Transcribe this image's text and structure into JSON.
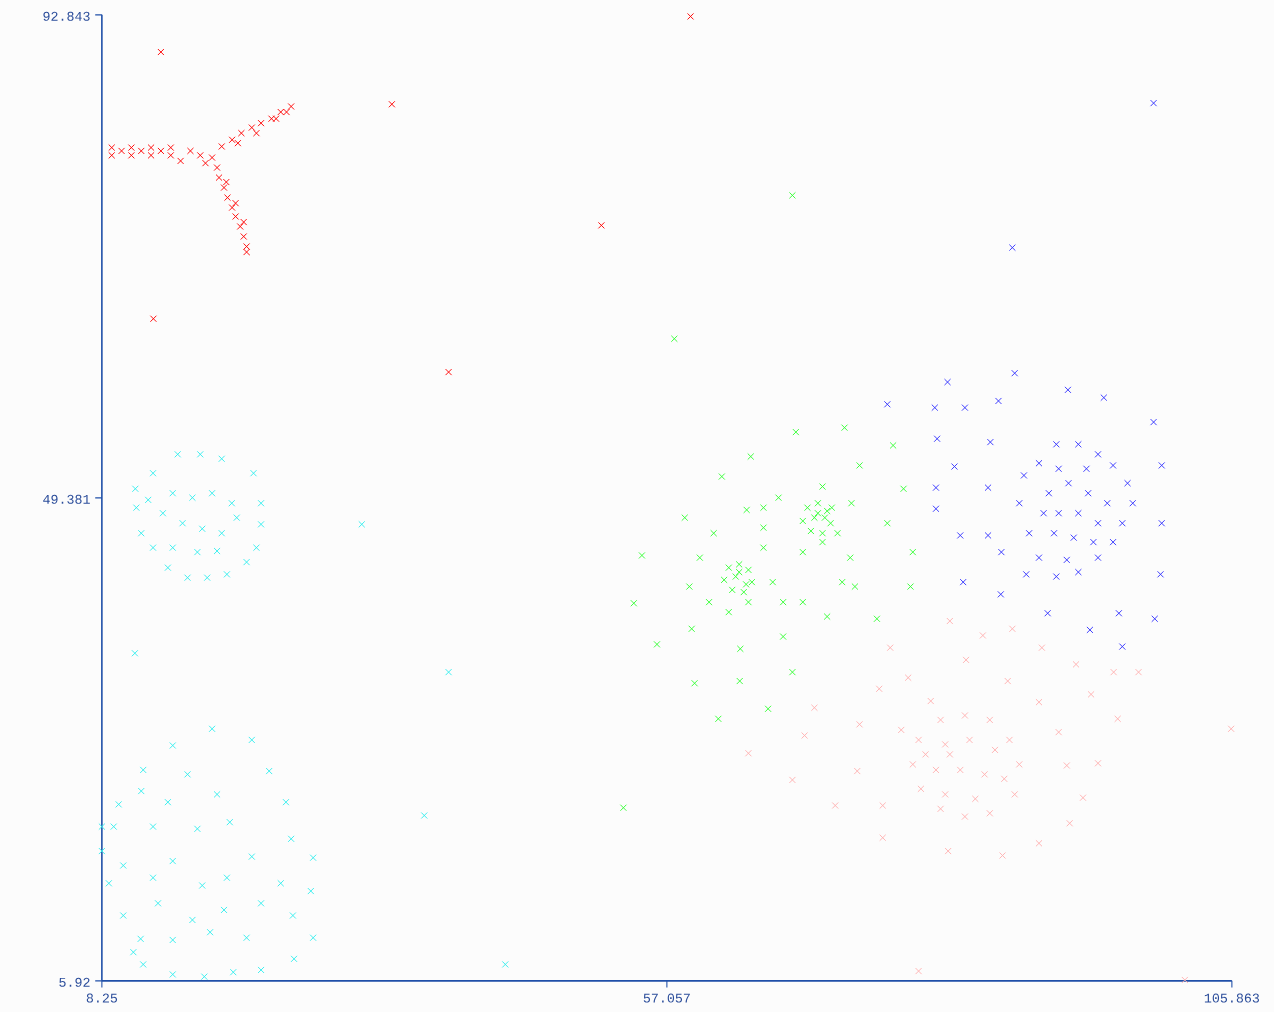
{
  "chart_data": {
    "type": "scatter",
    "marker": "cross",
    "xlim": [
      8.25,
      105.863
    ],
    "ylim": [
      5.92,
      92.843
    ],
    "xticks": [
      8.25,
      57.057,
      105.863
    ],
    "yticks": [
      5.92,
      49.381,
      92.843
    ],
    "series": [
      {
        "color": "#ff0000",
        "x": [
          13.35,
          59.1,
          33.3,
          51.4,
          12.7,
          38.2,
          9.1,
          9.1,
          9.95,
          10.8,
          10.8,
          11.65,
          12.5,
          12.5,
          13.35,
          14.2,
          14.2,
          15.05,
          15.9,
          16.75,
          17.2,
          17.77,
          18.2,
          18.6,
          19.5,
          20.3,
          21.2,
          22.0,
          22.9,
          23.7,
          24.6,
          20.0,
          21.6,
          23.3,
          24.2,
          18.37,
          18.8,
          19.1,
          19.5,
          19.8,
          20.2,
          20.5,
          20.75,
          20.75,
          19.0,
          19.8,
          20.5
        ],
        "values": [
          89.5,
          92.7,
          84.8,
          73.9,
          65.5,
          60.7,
          80.9,
          80.2,
          80.6,
          80.9,
          80.2,
          80.6,
          80.9,
          80.2,
          80.6,
          80.9,
          80.2,
          79.7,
          80.6,
          80.2,
          79.5,
          80.0,
          79.1,
          81.0,
          81.6,
          82.2,
          82.7,
          83.1,
          83.5,
          84.1,
          84.6,
          81.3,
          82.2,
          83.5,
          84.1,
          78.2,
          77.3,
          76.4,
          75.5,
          74.7,
          73.8,
          72.9,
          72.0,
          71.5,
          77.8,
          75.9,
          74.2
        ]
      },
      {
        "color": "#33eeee",
        "x": [
          11.1,
          30.7,
          38.2,
          36.1,
          43.1,
          8.25,
          8.25,
          11.14,
          12.25,
          11.23,
          11.65,
          12.67,
          14.8,
          16.75,
          18.6,
          21.35,
          22.0,
          22.0,
          21.6,
          20.75,
          19.05,
          17.35,
          15.65,
          13.95,
          12.67,
          14.37,
          16.07,
          17.77,
          19.47,
          15.22,
          16.92,
          18.6,
          14.37,
          16.5,
          18.2,
          19.9,
          13.52,
          17.77,
          14.37,
          21.2,
          11.82,
          15.65,
          22.7,
          9.7,
          13.95,
          18.2,
          24.15,
          11.65,
          9.27,
          12.67,
          16.5,
          19.3,
          24.6,
          10.1,
          14.37,
          16.92,
          21.2,
          26.5,
          8.85,
          12.67,
          19.05,
          23.7,
          26.3,
          10.1,
          13.1,
          16.07,
          18.8,
          22.0,
          24.75,
          11.6,
          14.37,
          17.6,
          20.75,
          26.5,
          11.82,
          14.37,
          17.1,
          19.6,
          22.0,
          24.85,
          10.97
        ],
        "values": [
          35.4,
          47.0,
          33.7,
          20.8,
          7.4,
          19.8,
          17.6,
          50.2,
          49.2,
          48.5,
          46.2,
          51.6,
          53.3,
          53.3,
          52.9,
          51.6,
          48.9,
          47.0,
          44.9,
          43.6,
          42.5,
          42.2,
          42.2,
          43.1,
          44.9,
          49.8,
          49.4,
          49.8,
          48.9,
          47.1,
          46.6,
          46.2,
          44.9,
          44.5,
          44.6,
          47.6,
          48.0,
          28.6,
          27.1,
          27.6,
          24.9,
          24.5,
          24.8,
          21.8,
          22.0,
          22.7,
          22.0,
          23.0,
          19.8,
          19.8,
          19.6,
          20.2,
          18.7,
          16.3,
          16.7,
          14.5,
          17.1,
          17.0,
          14.7,
          15.2,
          15.2,
          14.7,
          14.0,
          11.8,
          12.9,
          11.4,
          12.3,
          12.9,
          11.8,
          9.7,
          9.6,
          10.3,
          9.8,
          9.8,
          7.4,
          6.5,
          6.3,
          6.7,
          6.9,
          7.9,
          8.5
        ]
      },
      {
        "color": "#33ff33",
        "x": [
          67.9,
          57.7,
          53.3,
          72.4,
          68.2,
          73.7,
          64.3,
          61.8,
          58.6,
          54.9,
          54.2,
          56.2,
          59.45,
          61.5,
          63.35,
          65.8,
          67.9,
          70.9,
          67.1,
          63.4,
          59.2,
          75.2,
          78.1,
          78.3,
          76.1,
          77.5,
          73.3,
          72.9,
          73.0,
          70.5,
          66.7,
          65.4,
          63.95,
          61.1,
          59.9,
          59.0,
          60.7,
          65.4,
          66.2,
          68.8,
          68.8,
          70.5,
          71.8,
          72.2,
          67.1,
          62.4,
          64.1,
          65.4,
          71.3,
          62.4,
          63.3,
          64.1,
          62.0,
          63.0,
          64.4,
          62.7,
          63.7,
          63.3,
          63.9,
          69.2,
          70.1,
          70.9,
          68.8,
          69.8,
          71.2,
          69.5,
          70.5,
          70.1,
          70.7,
          76.6
        ],
        "values": [
          76.6,
          63.7,
          21.5,
          55.7,
          55.3,
          52.3,
          53.1,
          51.3,
          47.6,
          44.2,
          39.9,
          36.2,
          32.7,
          29.5,
          32.9,
          30.4,
          33.7,
          38.7,
          36.9,
          35.8,
          37.6,
          38.5,
          41.4,
          44.5,
          47.1,
          50.2,
          41.4,
          44.0,
          48.9,
          50.4,
          49.4,
          48.5,
          48.3,
          46.2,
          44.0,
          41.4,
          40.0,
          44.9,
          41.8,
          44.5,
          40.0,
          45.4,
          46.2,
          41.8,
          40.0,
          39.1,
          40.0,
          46.7,
          48.5,
          43.1,
          43.4,
          42.9,
          42.0,
          42.3,
          41.8,
          41.1,
          40.9,
          42.7,
          41.6,
          48.5,
          48.9,
          48.2,
          47.3,
          47.6,
          47.1,
          46.4,
          46.2,
          48.0,
          47.6,
          54.1
        ]
      },
      {
        "color": "#3333ff",
        "x": [
          99.1,
          86.9,
          81.3,
          87.1,
          76.1,
          80.2,
          82.8,
          85.7,
          91.7,
          94.8,
          99.1,
          80.4,
          85.0,
          81.9,
          99.8,
          80.3,
          84.8,
          80.3,
          99.8,
          82.4,
          84.8,
          85.95,
          82.65,
          88.1,
          99.7,
          85.9,
          89.95,
          93.6,
          96.1,
          99.2,
          96.4,
          87.9,
          89.2,
          90.7,
          92.6,
          94.3,
          95.6,
          96.85,
          97.3,
          96.4,
          95.6,
          94.3,
          92.6,
          90.7,
          89.2,
          88.35,
          87.5,
          90.05,
          91.75,
          93.45,
          95.1,
          90.9,
          92.6,
          94.3,
          90.5,
          92.2,
          93.9,
          91.6,
          89.6,
          93.3,
          90.9
        ],
        "values": [
          84.9,
          71.9,
          59.8,
          60.6,
          57.8,
          57.5,
          57.5,
          58.1,
          59.1,
          58.4,
          56.2,
          54.7,
          54.4,
          52.2,
          52.3,
          50.3,
          50.3,
          48.4,
          47.1,
          46.0,
          46.0,
          44.5,
          41.8,
          42.5,
          42.5,
          40.7,
          39.0,
          37.5,
          39.0,
          38.5,
          36.0,
          51.4,
          52.5,
          54.2,
          54.2,
          53.3,
          52.3,
          50.7,
          48.9,
          47.1,
          45.4,
          44.0,
          42.7,
          42.3,
          44.0,
          46.2,
          48.9,
          49.8,
          50.7,
          49.8,
          48.9,
          48.0,
          48.0,
          47.1,
          46.2,
          45.8,
          45.4,
          43.8,
          48.0,
          52.0,
          52.0
        ]
      },
      {
        "color": "#ffb0b0",
        "x": [
          105.8,
          101.8,
          78.8,
          97.8,
          95.65,
          96.0,
          94.3,
          93.0,
          91.85,
          89.2,
          86.05,
          81.35,
          75.7,
          75.7,
          71.6,
          73.5,
          73.7,
          75.4,
          77.9,
          76.35,
          81.5,
          84.35,
          86.9,
          89.45,
          92.4,
          93.7,
          90.9,
          91.6,
          82.9,
          79.85,
          77.3,
          67.9,
          68.95,
          69.8,
          64.1,
          86.5,
          89.2,
          80.7,
          82.8,
          84.95,
          86.65,
          87.5,
          87.1,
          84.95,
          82.8,
          80.7,
          79.0,
          78.3,
          78.8,
          81.1,
          83.2,
          85.4,
          80.3,
          82.4,
          84.5,
          86.2,
          81.1,
          83.7,
          79.4,
          81.5
        ],
        "values": [
          28.6,
          6.0,
          6.8,
          33.7,
          33.7,
          29.5,
          25.5,
          22.4,
          20.1,
          18.3,
          17.2,
          17.6,
          18.8,
          21.7,
          21.7,
          24.8,
          29.0,
          32.2,
          33.2,
          35.9,
          38.3,
          37.0,
          37.6,
          35.9,
          34.4,
          31.7,
          28.3,
          25.3,
          34.8,
          31.1,
          28.5,
          24.0,
          28.0,
          30.5,
          26.4,
          32.9,
          31.0,
          29.4,
          29.8,
          29.4,
          27.6,
          25.4,
          22.7,
          21.0,
          20.7,
          21.4,
          23.2,
          25.4,
          27.6,
          27.2,
          27.6,
          26.7,
          24.9,
          24.9,
          24.5,
          24.1,
          22.7,
          22.3,
          26.3,
          26.3
        ]
      }
    ]
  }
}
